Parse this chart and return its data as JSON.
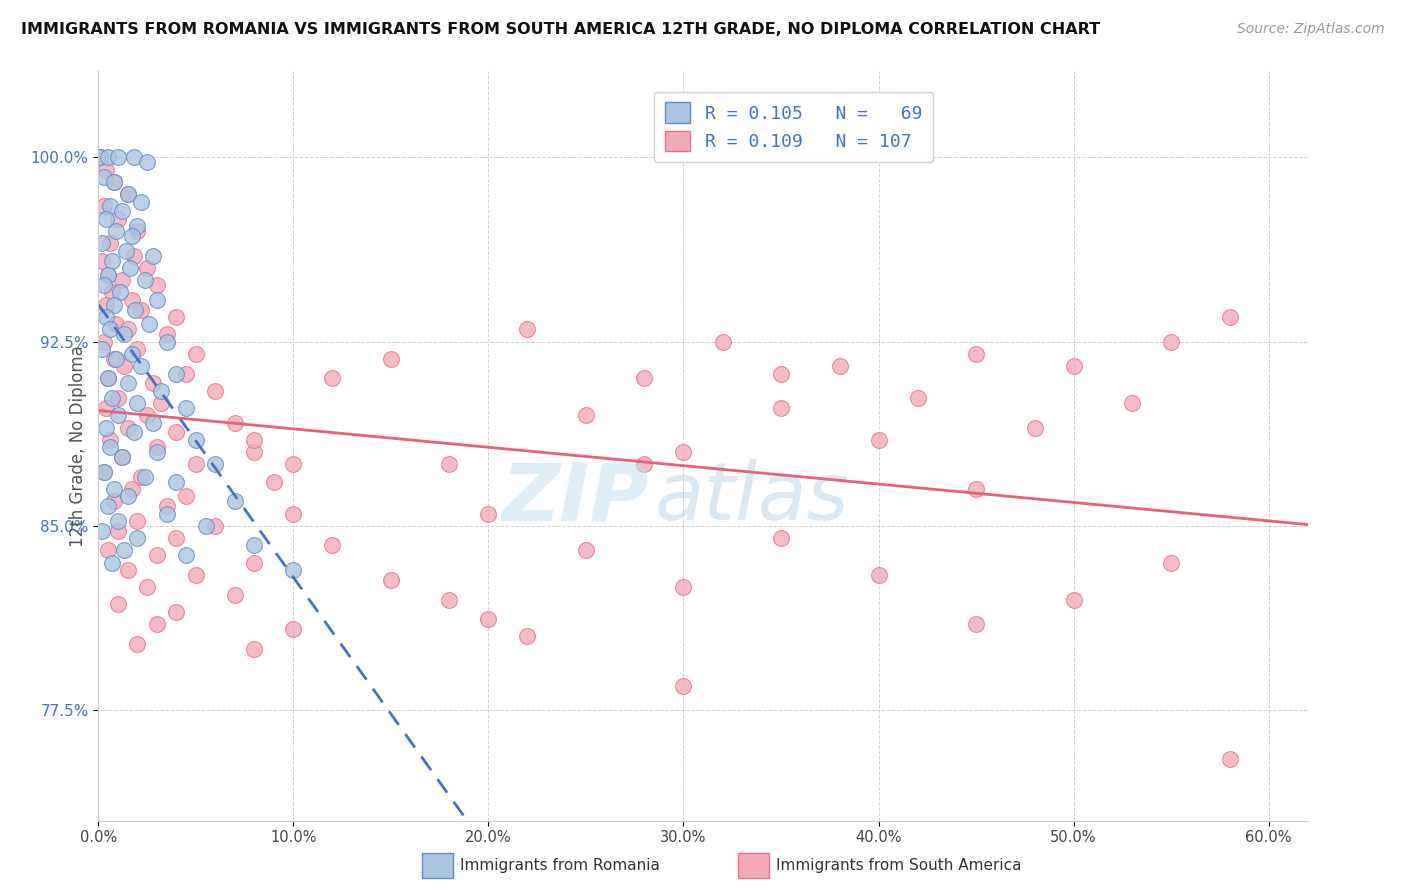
{
  "title": "IMMIGRANTS FROM ROMANIA VS IMMIGRANTS FROM SOUTH AMERICA 12TH GRADE, NO DIPLOMA CORRELATION CHART",
  "source": "Source: ZipAtlas.com",
  "ylabel": "12th Grade, No Diploma",
  "y_ticks": [
    77.5,
    85.0,
    92.5,
    100.0
  ],
  "y_tick_labels": [
    "77.5%",
    "85.0%",
    "92.5%",
    "100.0%"
  ],
  "x_ticks": [
    0,
    10,
    20,
    30,
    40,
    50,
    60
  ],
  "x_tick_labels": [
    "0.0%",
    "10.0%",
    "20.0%",
    "30.0%",
    "40.0%",
    "50.0%",
    "60.0%"
  ],
  "xlim": [
    0.0,
    62.0
  ],
  "ylim": [
    73.0,
    103.5
  ],
  "romania_R": 0.105,
  "romania_N": 69,
  "south_america_R": 0.109,
  "south_america_N": 107,
  "romania_color": "#aac4e2",
  "south_america_color": "#f5aabb",
  "romania_edge_color": "#5b8dc8",
  "south_america_edge_color": "#e8708a",
  "romania_line_color": "#4472c4",
  "south_america_line_color": "#e8607a",
  "watermark_zip_color": "#c5dff0",
  "watermark_atlas_color": "#b0cce0",
  "background_color": "#ffffff",
  "legend_line1": "R = 0.105   N =   69",
  "legend_line2": "R = 0.109   N = 107",
  "legend_text_color": "#4472c4",
  "bottom_label1": "Immigrants from Romania",
  "bottom_label2": "Immigrants from South America",
  "romania_scatter": [
    [
      0.1,
      100.0
    ],
    [
      0.5,
      100.0
    ],
    [
      1.0,
      100.0
    ],
    [
      1.8,
      100.0
    ],
    [
      2.5,
      99.8
    ],
    [
      0.3,
      99.2
    ],
    [
      0.8,
      99.0
    ],
    [
      1.5,
      98.5
    ],
    [
      2.2,
      98.2
    ],
    [
      0.6,
      98.0
    ],
    [
      1.2,
      97.8
    ],
    [
      0.4,
      97.5
    ],
    [
      2.0,
      97.2
    ],
    [
      0.9,
      97.0
    ],
    [
      1.7,
      96.8
    ],
    [
      0.2,
      96.5
    ],
    [
      1.4,
      96.2
    ],
    [
      2.8,
      96.0
    ],
    [
      0.7,
      95.8
    ],
    [
      1.6,
      95.5
    ],
    [
      0.5,
      95.2
    ],
    [
      2.4,
      95.0
    ],
    [
      0.3,
      94.8
    ],
    [
      1.1,
      94.5
    ],
    [
      3.0,
      94.2
    ],
    [
      0.8,
      94.0
    ],
    [
      1.9,
      93.8
    ],
    [
      0.4,
      93.5
    ],
    [
      2.6,
      93.2
    ],
    [
      0.6,
      93.0
    ],
    [
      1.3,
      92.8
    ],
    [
      3.5,
      92.5
    ],
    [
      0.2,
      92.2
    ],
    [
      1.7,
      92.0
    ],
    [
      0.9,
      91.8
    ],
    [
      2.2,
      91.5
    ],
    [
      4.0,
      91.2
    ],
    [
      0.5,
      91.0
    ],
    [
      1.5,
      90.8
    ],
    [
      3.2,
      90.5
    ],
    [
      0.7,
      90.2
    ],
    [
      2.0,
      90.0
    ],
    [
      4.5,
      89.8
    ],
    [
      1.0,
      89.5
    ],
    [
      2.8,
      89.2
    ],
    [
      0.4,
      89.0
    ],
    [
      1.8,
      88.8
    ],
    [
      5.0,
      88.5
    ],
    [
      0.6,
      88.2
    ],
    [
      3.0,
      88.0
    ],
    [
      1.2,
      87.8
    ],
    [
      6.0,
      87.5
    ],
    [
      0.3,
      87.2
    ],
    [
      2.4,
      87.0
    ],
    [
      4.0,
      86.8
    ],
    [
      0.8,
      86.5
    ],
    [
      1.5,
      86.2
    ],
    [
      7.0,
      86.0
    ],
    [
      0.5,
      85.8
    ],
    [
      3.5,
      85.5
    ],
    [
      1.0,
      85.2
    ],
    [
      5.5,
      85.0
    ],
    [
      0.2,
      84.8
    ],
    [
      2.0,
      84.5
    ],
    [
      8.0,
      84.2
    ],
    [
      1.3,
      84.0
    ],
    [
      4.5,
      83.8
    ],
    [
      0.7,
      83.5
    ],
    [
      10.0,
      83.2
    ]
  ],
  "south_america_scatter": [
    [
      0.1,
      100.0
    ],
    [
      0.4,
      99.5
    ],
    [
      0.8,
      99.0
    ],
    [
      1.5,
      98.5
    ],
    [
      0.3,
      98.0
    ],
    [
      1.0,
      97.5
    ],
    [
      2.0,
      97.0
    ],
    [
      0.6,
      96.5
    ],
    [
      1.8,
      96.0
    ],
    [
      0.2,
      95.8
    ],
    [
      2.5,
      95.5
    ],
    [
      0.5,
      95.2
    ],
    [
      1.2,
      95.0
    ],
    [
      3.0,
      94.8
    ],
    [
      0.7,
      94.5
    ],
    [
      1.7,
      94.2
    ],
    [
      0.4,
      94.0
    ],
    [
      2.2,
      93.8
    ],
    [
      4.0,
      93.5
    ],
    [
      0.9,
      93.2
    ],
    [
      1.5,
      93.0
    ],
    [
      3.5,
      92.8
    ],
    [
      0.3,
      92.5
    ],
    [
      2.0,
      92.2
    ],
    [
      5.0,
      92.0
    ],
    [
      0.8,
      91.8
    ],
    [
      1.3,
      91.5
    ],
    [
      4.5,
      91.2
    ],
    [
      0.5,
      91.0
    ],
    [
      2.8,
      90.8
    ],
    [
      6.0,
      90.5
    ],
    [
      1.0,
      90.2
    ],
    [
      3.2,
      90.0
    ],
    [
      0.4,
      89.8
    ],
    [
      2.5,
      89.5
    ],
    [
      7.0,
      89.2
    ],
    [
      1.5,
      89.0
    ],
    [
      4.0,
      88.8
    ],
    [
      0.6,
      88.5
    ],
    [
      3.0,
      88.2
    ],
    [
      8.0,
      88.0
    ],
    [
      1.2,
      87.8
    ],
    [
      5.0,
      87.5
    ],
    [
      0.3,
      87.2
    ],
    [
      2.2,
      87.0
    ],
    [
      9.0,
      86.8
    ],
    [
      1.7,
      86.5
    ],
    [
      4.5,
      86.2
    ],
    [
      0.8,
      86.0
    ],
    [
      3.5,
      85.8
    ],
    [
      10.0,
      85.5
    ],
    [
      2.0,
      85.2
    ],
    [
      6.0,
      85.0
    ],
    [
      1.0,
      84.8
    ],
    [
      4.0,
      84.5
    ],
    [
      12.0,
      84.2
    ],
    [
      0.5,
      84.0
    ],
    [
      3.0,
      83.8
    ],
    [
      8.0,
      83.5
    ],
    [
      1.5,
      83.2
    ],
    [
      5.0,
      83.0
    ],
    [
      15.0,
      82.8
    ],
    [
      2.5,
      82.5
    ],
    [
      7.0,
      82.2
    ],
    [
      18.0,
      82.0
    ],
    [
      1.0,
      81.8
    ],
    [
      4.0,
      81.5
    ],
    [
      20.0,
      81.2
    ],
    [
      3.0,
      81.0
    ],
    [
      10.0,
      80.8
    ],
    [
      22.0,
      80.5
    ],
    [
      2.0,
      80.2
    ],
    [
      8.0,
      80.0
    ],
    [
      25.0,
      89.5
    ],
    [
      28.0,
      91.0
    ],
    [
      30.0,
      88.0
    ],
    [
      32.0,
      92.5
    ],
    [
      35.0,
      89.8
    ],
    [
      38.0,
      91.5
    ],
    [
      40.0,
      88.5
    ],
    [
      42.0,
      90.2
    ],
    [
      45.0,
      92.0
    ],
    [
      48.0,
      89.0
    ],
    [
      50.0,
      91.5
    ],
    [
      53.0,
      90.0
    ],
    [
      55.0,
      92.5
    ],
    [
      58.0,
      93.5
    ],
    [
      20.0,
      85.5
    ],
    [
      25.0,
      84.0
    ],
    [
      30.0,
      78.5
    ],
    [
      35.0,
      84.5
    ],
    [
      40.0,
      83.0
    ],
    [
      45.0,
      81.0
    ],
    [
      50.0,
      82.0
    ],
    [
      55.0,
      83.5
    ],
    [
      58.0,
      75.5
    ],
    [
      30.0,
      82.5
    ],
    [
      18.0,
      87.5
    ],
    [
      12.0,
      91.0
    ],
    [
      8.0,
      88.5
    ],
    [
      22.0,
      93.0
    ],
    [
      45.0,
      86.5
    ],
    [
      35.0,
      91.2
    ],
    [
      28.0,
      87.5
    ],
    [
      15.0,
      91.8
    ],
    [
      10.0,
      87.5
    ]
  ]
}
